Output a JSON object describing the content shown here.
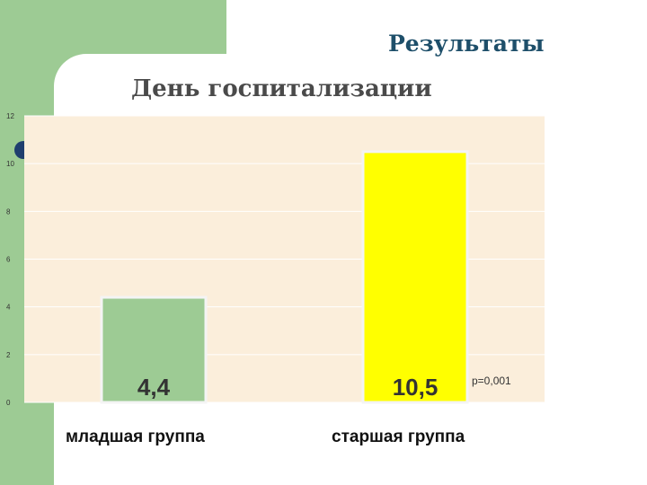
{
  "slide": {
    "title": "Результаты"
  },
  "chart_data": {
    "type": "bar",
    "title": "День госпитализации",
    "categories": [
      "младшая группа",
      "старшая группа"
    ],
    "values": [
      4.4,
      10.5
    ],
    "data_labels": [
      "4,4",
      "10,5"
    ],
    "ylim": [
      0,
      12
    ],
    "yticks": [
      "0",
      "2",
      "4",
      "6",
      "8",
      "10",
      "12"
    ],
    "annotation": "p=0,001",
    "grid": true,
    "legend": "none",
    "colors": {
      "plot_bg": "#fbeedb",
      "bars": [
        "#9dcb94",
        "#ffff00"
      ],
      "bar_border": "#f4f4f4",
      "grid": "#ffffff"
    }
  }
}
